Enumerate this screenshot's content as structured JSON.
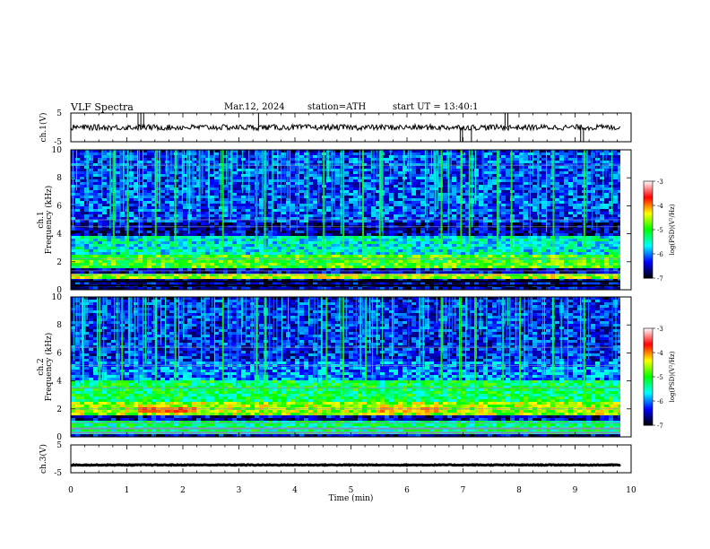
{
  "header": {
    "title": "VLF  Spectra",
    "date": "Mar.12, 2024",
    "station": "station=ATH",
    "start": "start  UT  =   13:40:1"
  },
  "chart_data": {
    "type": "heatmap",
    "x_axis": {
      "label": "Time  (min)",
      "range": [
        0,
        10
      ],
      "ticks": [
        "0",
        "1",
        "2",
        "3",
        "4",
        "5",
        "6",
        "7",
        "8",
        "9",
        "10"
      ]
    },
    "panels": [
      {
        "type": "line",
        "ylabel": "ch.1(V)",
        "ylim": [
          -5,
          5
        ],
        "yticks": [
          "5",
          "-5"
        ],
        "trace_level": 0,
        "trace_noise": 1,
        "spikes_up_at_min": [
          1.2,
          1.25,
          1.3,
          3.35,
          7.75,
          7.8
        ],
        "spikes_down_at_min": [
          6.95,
          6.99,
          7.15,
          9.1,
          9.15
        ]
      },
      {
        "type": "heatmap",
        "ylabel_lines": [
          "ch.1",
          "Frequency  (kHz)"
        ],
        "ylim": [
          0,
          10
        ],
        "yticks": [
          "0",
          "2",
          "4",
          "6",
          "8",
          "10"
        ],
        "colorbar": {
          "label": "log(PSD)(V²/Hz)",
          "range": [
            -7,
            -3
          ],
          "ticks": [
            "-3",
            "-4",
            "-5",
            "-6",
            "-7"
          ],
          "colors": [
            "#000000",
            "#0000ff",
            "#00ffff",
            "#00ff00",
            "#ffff00",
            "#ff0000",
            "#ffffff"
          ]
        },
        "bands_khz": [
          {
            "from": 0.9,
            "to": 1.3,
            "level": -4.6
          },
          {
            "from": 1.6,
            "to": 2.6,
            "level": -4.9
          },
          {
            "from": 2.6,
            "to": 4.0,
            "level": -5.6
          },
          {
            "from": 4.3,
            "to": 5.0,
            "level": -6.6
          },
          {
            "from": 5.0,
            "to": 10.0,
            "level": -6.2
          }
        ],
        "sferics_at_min": [
          0.75,
          1.0,
          1.5,
          1.85,
          2.7,
          3.3,
          3.45,
          4.5,
          4.85,
          5.2,
          5.5,
          6.6,
          6.95,
          7.1,
          7.6,
          7.85,
          8.6,
          9.15
        ]
      },
      {
        "type": "heatmap",
        "ylabel_lines": [
          "ch.2",
          "Frequency  (kHz)"
        ],
        "ylim": [
          0,
          10
        ],
        "yticks": [
          "0",
          "2",
          "4",
          "6",
          "8",
          "10"
        ],
        "colorbar": {
          "label": "log(PSD)(V²/Hz)",
          "range": [
            -7,
            -3
          ],
          "ticks": [
            "-3",
            "-4",
            "-5",
            "-6",
            "-7"
          ],
          "colors": [
            "#000000",
            "#0000ff",
            "#00ffff",
            "#00ff00",
            "#ffff00",
            "#ff0000",
            "#ffffff"
          ]
        },
        "bands_khz": [
          {
            "from": 0.2,
            "to": 1.2,
            "level": -5.3
          },
          {
            "from": 1.6,
            "to": 2.6,
            "level": -4.6
          },
          {
            "from": 2.6,
            "to": 4.2,
            "level": -5.2
          },
          {
            "from": 4.2,
            "to": 5.5,
            "level": -6.0
          },
          {
            "from": 5.5,
            "to": 10.0,
            "level": -6.3
          }
        ],
        "hot_spots": [
          {
            "t_from": 1.2,
            "t_to": 2.2,
            "f_from": 1.8,
            "f_to": 2.2,
            "level": -3.9
          },
          {
            "t_from": 5.5,
            "t_to": 6.5,
            "f_from": 1.8,
            "f_to": 2.2,
            "level": -4.1
          }
        ],
        "sferics_at_min": [
          0.5,
          0.9,
          1.5,
          1.85,
          2.7,
          3.3,
          3.45,
          4.55,
          4.85,
          5.25,
          6.6,
          6.95,
          7.2,
          7.7,
          8.0,
          8.6,
          9.15
        ]
      },
      {
        "type": "line",
        "ylabel": "ch.3(V)",
        "ylim": [
          -5,
          5
        ],
        "yticks": [
          "5",
          "-5"
        ],
        "trace_level": -2.2,
        "trace_noise": 0.15,
        "data_end_min": 9.8
      }
    ]
  }
}
